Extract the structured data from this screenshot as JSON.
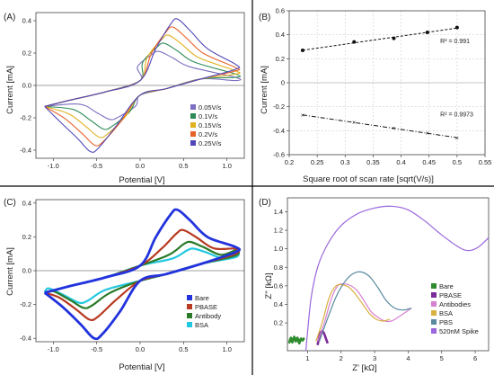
{
  "chart_data": [
    {
      "panel": "(A)",
      "type": "line",
      "xlabel": "Potential [V]",
      "ylabel": "Current [mA]",
      "xlim": [
        -1.2,
        1.2
      ],
      "ylim": [
        -0.45,
        0.45
      ],
      "xticks": [
        -1,
        -0.5,
        0,
        0.5,
        1
      ],
      "yticks": [
        -0.4,
        -0.2,
        0,
        0.2,
        0.4
      ],
      "xtick_labels": [
        "-1.0",
        "-0.5",
        "0.0",
        "0.5",
        "1.0"
      ],
      "ytick_labels": [
        "-0.4",
        "-0.2",
        "0.0",
        "0.2",
        "0.4"
      ],
      "legend_position": "bottom-right",
      "series": [
        {
          "name": "0.05V/s",
          "color": "#7b6fc2",
          "anodic_peak": [
            0.22,
            0.21
          ],
          "cathodic_peak": [
            -0.35,
            -0.21
          ],
          "end_upper": 0.05,
          "end_lower": 0.03
        },
        {
          "name": "0.1V/s",
          "color": "#2e8b57",
          "anodic_peak": [
            0.28,
            0.26
          ],
          "cathodic_peak": [
            -0.42,
            -0.27
          ],
          "end_upper": 0.07,
          "end_lower": 0.05
        },
        {
          "name": "0.15V/s",
          "color": "#e0b020",
          "anodic_peak": [
            0.33,
            0.31
          ],
          "cathodic_peak": [
            -0.47,
            -0.32
          ],
          "end_upper": 0.09,
          "end_lower": 0.07
        },
        {
          "name": "0.2V/s",
          "color": "#e8632b",
          "anodic_peak": [
            0.38,
            0.36
          ],
          "cathodic_peak": [
            -0.52,
            -0.37
          ],
          "end_upper": 0.11,
          "end_lower": 0.09
        },
        {
          "name": "0.25V/s",
          "color": "#5048b8",
          "anodic_peak": [
            0.43,
            0.41
          ],
          "cathodic_peak": [
            -0.57,
            -0.41
          ],
          "end_upper": 0.13,
          "end_lower": 0.1
        }
      ]
    },
    {
      "panel": "(B)",
      "type": "scatter",
      "xlabel": "Square root of scan rate [sqrt(V/s)]",
      "ylabel": "Current [mA]",
      "xlim": [
        0.2,
        0.55
      ],
      "ylim": [
        -0.6,
        0.6
      ],
      "xticks": [
        0.2,
        0.25,
        0.3,
        0.35,
        0.4,
        0.45,
        0.5,
        0.55
      ],
      "yticks": [
        -0.6,
        -0.4,
        -0.2,
        0,
        0.2,
        0.4,
        0.6
      ],
      "xtick_labels": [
        "0.2",
        "0.25",
        "0.3",
        "0.35",
        "0.4",
        "0.45",
        "0.5",
        "0.55"
      ],
      "ytick_labels": [
        "-0.6",
        "-0.4",
        "-0.2",
        "0",
        "0.2",
        "0.4",
        "0.6"
      ],
      "grid": true,
      "series": [
        {
          "x": [
            0.224,
            0.316,
            0.387,
            0.447,
            0.5
          ],
          "y": [
            0.27,
            0.34,
            0.37,
            0.42,
            0.46
          ],
          "annotation": "R² = 0.991"
        },
        {
          "x": [
            0.224,
            0.316,
            0.387,
            0.447,
            0.5
          ],
          "y": [
            -0.27,
            -0.33,
            -0.38,
            -0.42,
            -0.46
          ],
          "annotation": "R² = 0.9973"
        }
      ]
    },
    {
      "panel": "(C)",
      "type": "line",
      "xlabel": "Potential [V]",
      "ylabel": "Current [mA]",
      "xlim": [
        -1.2,
        1.2
      ],
      "ylim": [
        -0.42,
        0.42
      ],
      "xticks": [
        -1,
        -0.5,
        0,
        0.5,
        1
      ],
      "yticks": [
        -0.4,
        -0.2,
        0,
        0.2,
        0.4
      ],
      "xtick_labels": [
        "-1.0",
        "-0.5",
        "0.0",
        "0.5",
        "1.0"
      ],
      "ytick_labels": [
        "-0.4",
        "-0.2",
        "0.0",
        "0.2",
        "0.4"
      ],
      "legend_position": "bottom-right",
      "series": [
        {
          "name": "Bare",
          "color": "#2233dd",
          "anodic_peak": [
            0.43,
            0.36
          ],
          "cathodic_peak": [
            -0.53,
            -0.4
          ],
          "end_upper": 0.14,
          "end_lower": 0.11
        },
        {
          "name": "PBASE",
          "color": "#b83a22",
          "anodic_peak": [
            0.5,
            0.24
          ],
          "cathodic_peak": [
            -0.58,
            -0.29
          ],
          "end_upper": 0.13,
          "end_lower": 0.1
        },
        {
          "name": "Antibody",
          "color": "#2a7a2a",
          "anodic_peak": [
            0.58,
            0.17
          ],
          "cathodic_peak": [
            -0.65,
            -0.22
          ],
          "end_upper": 0.12,
          "end_lower": 0.09
        },
        {
          "name": "BSA",
          "color": "#22c8e0",
          "anodic_peak": [
            0.62,
            0.13
          ],
          "cathodic_peak": [
            -0.7,
            -0.19
          ],
          "end_upper": 0.11,
          "end_lower": 0.08
        }
      ]
    },
    {
      "panel": "(D)",
      "type": "line",
      "xlabel": "Z' [kΩ]",
      "ylabel": "Z'' [kΩ]",
      "xlim": [
        0.4,
        6.4
      ],
      "ylim": [
        -0.1,
        1.55
      ],
      "xticks": [
        1,
        2,
        3,
        4,
        5,
        6
      ],
      "yticks": [
        0.2,
        0.4,
        0.6,
        0.8,
        1.0,
        1.2,
        1.4
      ],
      "xtick_labels": [
        "1",
        "2",
        "3",
        "4",
        "5",
        "6"
      ],
      "ytick_labels": [
        "0.2",
        "0.4",
        "0.6",
        "0.8",
        "1.0",
        "1.2",
        "1.4"
      ],
      "legend_position": "bottom-right",
      "series": [
        {
          "name": "Bare",
          "color": "#2e8b2e",
          "x": [
            0.45,
            0.5,
            0.55,
            0.6,
            0.65,
            0.7,
            0.75,
            0.8,
            0.85,
            0.9
          ],
          "y": [
            -0.02,
            0.04,
            -0.01,
            0.05,
            0.0,
            0.04,
            -0.02,
            0.03,
            0.01,
            0.04
          ]
        },
        {
          "name": "PBASE",
          "color": "#7b2a9a",
          "x": [
            1.3,
            1.35,
            1.4,
            1.45,
            1.5,
            1.55,
            1.6
          ],
          "y": [
            -0.04,
            0.05,
            0.1,
            0.11,
            0.08,
            0.03,
            -0.02
          ]
        },
        {
          "name": "Antibodies",
          "color": "#d880d0",
          "x": [
            1.3,
            1.5,
            1.7,
            1.9,
            2.1,
            2.3,
            2.5,
            2.7,
            2.9,
            3.1,
            3.3,
            3.5,
            3.7,
            3.9,
            4.1
          ],
          "y": [
            0.0,
            0.2,
            0.45,
            0.6,
            0.62,
            0.6,
            0.54,
            0.43,
            0.32,
            0.26,
            0.22,
            0.22,
            0.26,
            0.31,
            0.36
          ]
        },
        {
          "name": "BSA",
          "color": "#d8b040",
          "x": [
            1.25,
            1.45,
            1.65,
            1.85,
            2.05,
            2.25,
            2.45,
            2.65,
            2.85,
            3.05,
            3.25,
            3.45
          ],
          "y": [
            0.0,
            0.22,
            0.48,
            0.6,
            0.61,
            0.58,
            0.5,
            0.4,
            0.3,
            0.24,
            0.22,
            0.24
          ]
        },
        {
          "name": "PBS",
          "color": "#5a8aa0",
          "x": [
            1.35,
            1.6,
            1.85,
            2.1,
            2.35,
            2.6,
            2.85,
            3.1,
            3.35,
            3.6,
            3.85,
            4.1
          ],
          "y": [
            0.0,
            0.25,
            0.48,
            0.64,
            0.73,
            0.75,
            0.7,
            0.58,
            0.44,
            0.36,
            0.34,
            0.36
          ]
        },
        {
          "name": "520nM Spike",
          "color": "#9966dd",
          "x": [
            0.95,
            1.1,
            1.3,
            1.6,
            2.0,
            2.5,
            3.0,
            3.5,
            4.0,
            4.5,
            5.0,
            5.5,
            5.8,
            6.1,
            6.4
          ],
          "y": [
            -0.1,
            0.45,
            0.8,
            1.05,
            1.25,
            1.38,
            1.44,
            1.46,
            1.42,
            1.3,
            1.15,
            1.02,
            0.98,
            1.02,
            1.12
          ]
        }
      ]
    }
  ]
}
